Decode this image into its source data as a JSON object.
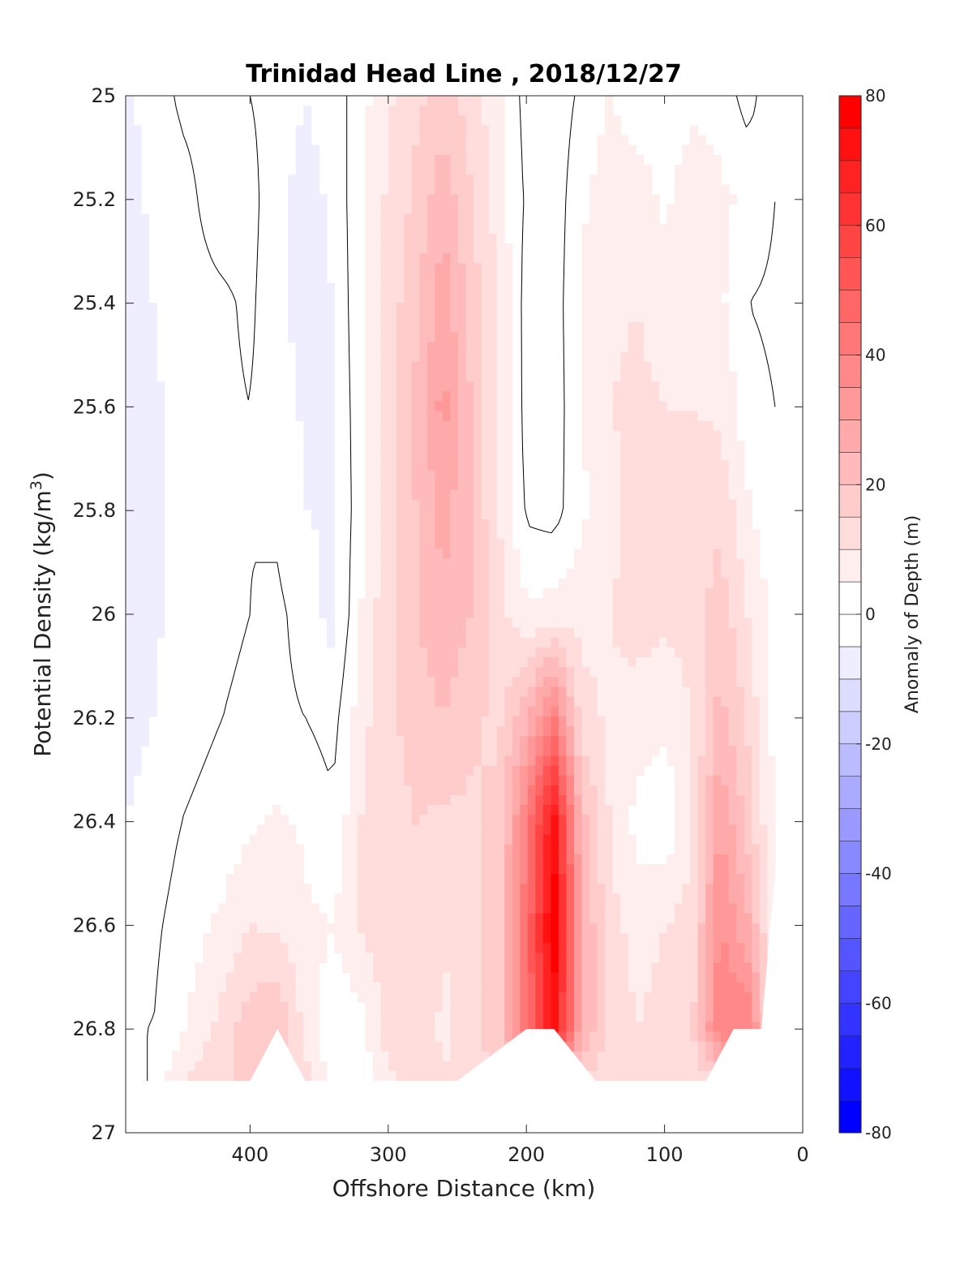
{
  "chart_data": {
    "type": "heatmap",
    "title": "Trinidad Head Line , 2018/12/27",
    "xlabel": "Offshore Distance (km)",
    "ylabel_main": "Potential Density (kg/m",
    "ylabel_sup": "3",
    "ylabel_close": ")",
    "colorbar_label": "Anomaly of Depth (m)",
    "xlim": [
      490,
      0
    ],
    "ylim": [
      25,
      27
    ],
    "y_reversed": true,
    "x_reversed": true,
    "grid": false,
    "x_ticks": [
      400,
      300,
      200,
      100,
      0
    ],
    "y_ticks": [
      "25",
      "25.2",
      "25.4",
      "25.6",
      "25.8",
      "26",
      "26.2",
      "26.4",
      "26.6",
      "26.8",
      "27"
    ],
    "colorbar": {
      "range": [
        -80,
        80
      ],
      "step": 5,
      "ticks": [
        80,
        60,
        40,
        20,
        0,
        -20,
        -40,
        -60,
        -80
      ],
      "low_color": "#0000ff",
      "mid_color": "#ffffff",
      "high_color": "#ff0000"
    },
    "data_limit": {
      "x": [
        490,
        470,
        450,
        420,
        400,
        380,
        360,
        340,
        300,
        250,
        200,
        180,
        150,
        100,
        70,
        50,
        30,
        20
      ],
      "max_density": [
        26.9,
        26.9,
        26.9,
        26.9,
        26.9,
        26.8,
        26.9,
        26.9,
        26.9,
        26.9,
        26.8,
        26.8,
        26.9,
        26.9,
        26.9,
        26.8,
        26.8,
        26.5
      ]
    },
    "anomaly_field": {
      "x": [
        490,
        470,
        450,
        420,
        400,
        380,
        360,
        340,
        320,
        300,
        280,
        260,
        240,
        220,
        200,
        180,
        160,
        140,
        120,
        100,
        80,
        60,
        40,
        20
      ],
      "y": [
        25.0,
        25.2,
        25.4,
        25.6,
        25.8,
        26.0,
        26.2,
        26.4,
        26.6,
        26.8,
        26.9
      ],
      "values": [
        [
          -6,
          -3,
          1,
          2,
          0,
          -2,
          -5,
          -3,
          3,
          9,
          14,
          17,
          13,
          6,
          -2,
          -3,
          1,
          5,
          2,
          1,
          4,
          3,
          -2,
          4
        ],
        [
          -7,
          -4,
          -2,
          3,
          2,
          -4,
          -7,
          -4,
          4,
          11,
          16,
          24,
          15,
          8,
          -1,
          -3,
          4,
          8,
          8,
          4,
          8,
          6,
          4,
          0
        ],
        [
          -7,
          -5,
          -2,
          -1,
          1,
          -4,
          -7,
          -5,
          4,
          12,
          19,
          28,
          18,
          9,
          -2,
          -3,
          6,
          9,
          10,
          8,
          9,
          6,
          0,
          -1
        ],
        [
          -8,
          -6,
          -3,
          -1,
          0,
          -2,
          -6,
          -5,
          3,
          12,
          21,
          32,
          20,
          10,
          -2,
          -3,
          5,
          10,
          11,
          10,
          10,
          9,
          2,
          0
        ],
        [
          -9,
          -6,
          -3,
          -1,
          0,
          -1,
          -5,
          -6,
          3,
          12,
          20,
          27,
          20,
          10,
          -1,
          -2,
          4,
          8,
          12,
          12,
          12,
          14,
          6,
          1
        ],
        [
          -9,
          -6,
          -3,
          -1,
          0,
          1,
          -2,
          -7,
          5,
          14,
          20,
          24,
          20,
          12,
          6,
          7,
          8,
          10,
          12,
          11,
          12,
          18,
          10,
          3
        ],
        [
          -7,
          -5,
          -2,
          0,
          1,
          1,
          0,
          -2,
          8,
          14,
          17,
          20,
          16,
          14,
          24,
          40,
          12,
          9,
          8,
          6,
          10,
          22,
          14,
          3
        ],
        [
          -5,
          -3,
          0,
          2,
          4,
          6,
          4,
          1,
          10,
          13,
          15,
          14,
          14,
          16,
          40,
          72,
          22,
          10,
          3,
          1,
          10,
          30,
          18,
          4
        ],
        [
          -3,
          -1,
          2,
          6,
          10,
          9,
          6,
          5,
          11,
          12,
          14,
          10,
          14,
          18,
          44,
          80,
          26,
          12,
          8,
          10,
          12,
          36,
          26,
          6
        ],
        [
          0,
          0,
          4,
          12,
          18,
          20,
          8,
          2,
          2,
          13,
          14,
          9,
          14,
          18,
          44,
          72,
          26,
          14,
          10,
          12,
          14,
          40,
          40,
          8
        ],
        [
          0,
          0,
          10,
          15,
          15,
          15,
          12,
          2,
          2,
          9,
          12,
          10,
          12,
          14,
          16,
          18,
          14,
          12,
          10,
          10,
          12,
          14,
          14,
          6
        ]
      ]
    }
  }
}
